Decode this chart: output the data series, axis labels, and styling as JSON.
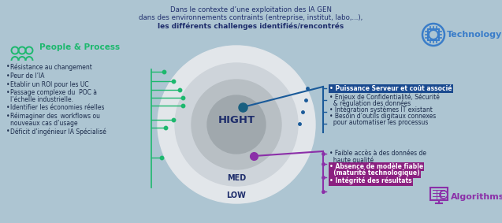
{
  "bg_color": "#adc5d2",
  "title_line1": "Dans le contexte d’une exploitation des IA GEN",
  "title_line2": "dans des environnements contraints (entreprise, institut, labo,...),",
  "title_line3": "les différents challenges identifiés/rencontrés",
  "title_color": "#1e2d6b",
  "people_label": "People & Process",
  "people_color": "#1db86e",
  "technology_label": "Technology",
  "technology_color": "#3a7dc9",
  "algorithms_label": "Algorithms",
  "algorithms_color": "#8b2fa8",
  "left_bullets": [
    "Résistance au changement",
    "Peur de l’IA",
    "Etablir un ROI pour les UC",
    "Passage complexe du  POC à",
    "  l’échelle industrielle.",
    "Identifier les économies réelles",
    "Réimaginer des  workflows ou",
    "  nouveaux cas d’usage",
    "Déficit d’ingénieur IA Spécialisé"
  ],
  "right_top_bullets_plain": [
    "Enjeux de Confidentialité, Sécurité",
    "& régulation des données",
    "Intégration systèmes IT existant",
    "Besoin d’outils digitaux connexes",
    "pour automatiser les processus"
  ],
  "right_bottom_bullets_plain": [
    "Faible accès à des données de",
    "haute qualité"
  ],
  "highlight_blue_text": "Puissance Serveur et coût associé",
  "highlight_blue": "#1a4a8f",
  "highlight_purple_lines": [
    "Absence de modèle fiable",
    "(maturité technologique)",
    "Intégrité des résultats"
  ],
  "highlight_purple": "#8b2080",
  "hight_label": "HIGHT",
  "med_label": "MED",
  "low_label": "LOW",
  "green_color": "#1db86e",
  "blue_color": "#1a5a99",
  "purple_color": "#8b2fa8",
  "teal_dot_color": "#1a6080",
  "circle_colors": [
    "#e2e6ea",
    "#ced4da",
    "#b8bfc4",
    "#a0a8ad"
  ],
  "circle_radii": [
    100,
    78,
    57,
    37
  ]
}
